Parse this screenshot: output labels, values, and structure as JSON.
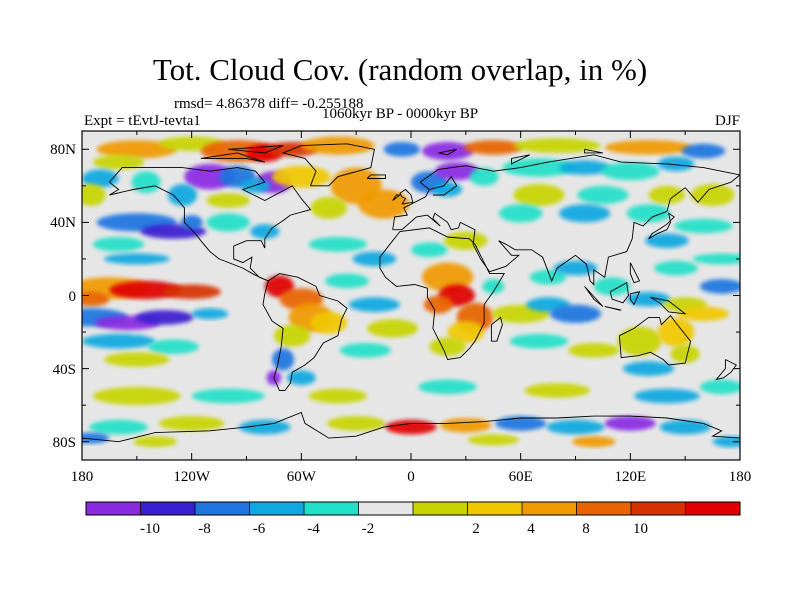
{
  "title": "Tot. Cloud Cov. (random overlap, in %)",
  "stats_text": "rmsd= 4.86378 diff= -0.255188",
  "experiment_text": "Expt = tEvtJ-tevta1",
  "period_text": "1060kyr BP - 0000kyr BP",
  "season_text": "DJF",
  "map": {
    "projection": "cylindrical equidistant",
    "lon_range": [
      -180,
      180
    ],
    "lat_range": [
      -90,
      90
    ],
    "x_tick_labels": [
      "180",
      "120W",
      "60W",
      "0",
      "60E",
      "120E",
      "180"
    ],
    "y_tick_labels": [
      "80N",
      "40N",
      "0",
      "40S",
      "80S"
    ]
  },
  "colorbar": {
    "labels": [
      "-10",
      "-8",
      "-6",
      "-4",
      "-2",
      "2",
      "4",
      "8",
      "10"
    ],
    "colors": [
      "#8a2be2",
      "#3a1fd0",
      "#1f74e0",
      "#10a8e0",
      "#20e0c8",
      "#e6e6e6",
      "#c8d400",
      "#f0c800",
      "#f09a00",
      "#e86400",
      "#d83000",
      "#e00000"
    ]
  },
  "chart_data": {
    "type": "heatmap",
    "title": "Tot. Cloud Cov. (random overlap, in %)",
    "variable": "Total cloud cover difference (random overlap)",
    "units": "%",
    "season": "DJF",
    "rmsd": 4.86378,
    "diff": -0.255188,
    "levels": [
      -10,
      -8,
      -6,
      -4,
      -2,
      2,
      4,
      8,
      10
    ]
  }
}
